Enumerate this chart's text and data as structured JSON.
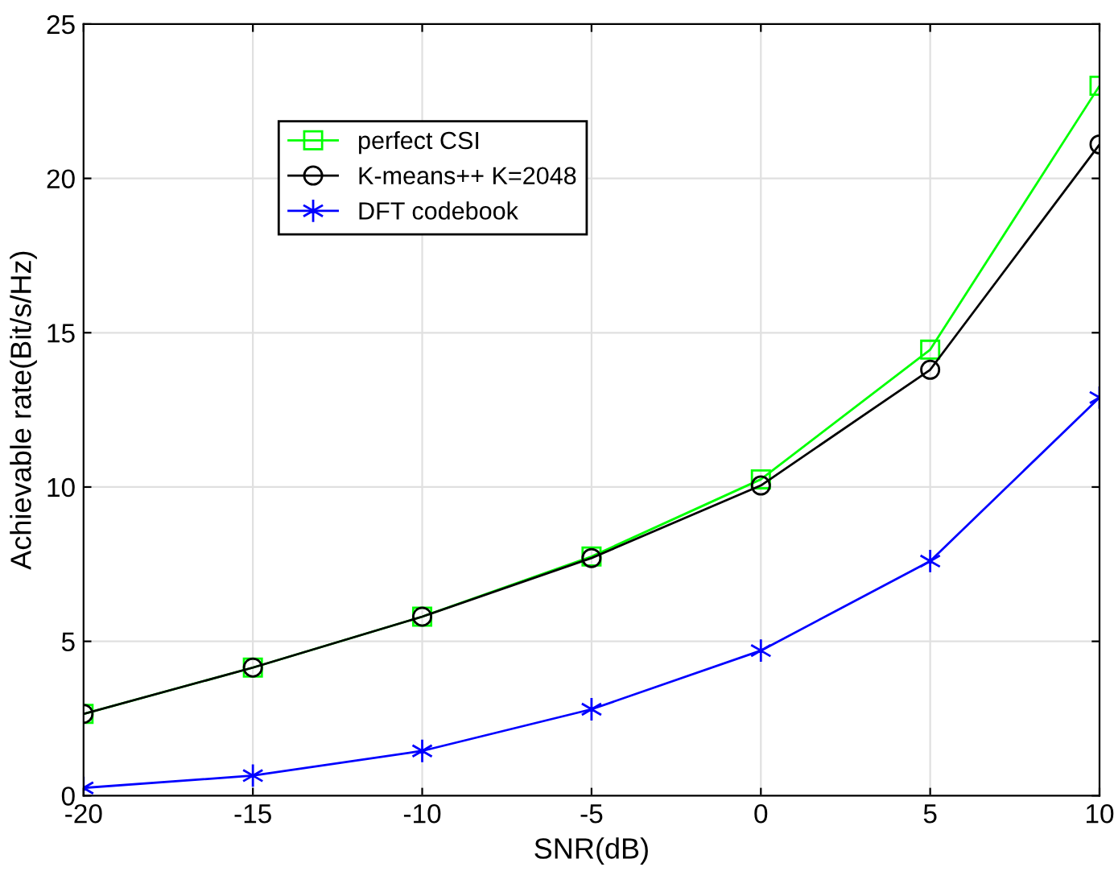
{
  "chart_data": {
    "type": "line",
    "xlabel": "SNR(dB)",
    "ylabel": "Achievable rate(Bit/s/Hz)",
    "x": [
      -20,
      -15,
      -10,
      -5,
      0,
      5,
      10
    ],
    "series": [
      {
        "name": "perfect CSI",
        "color": "#00ff00",
        "marker": "square",
        "values": [
          2.65,
          4.15,
          5.8,
          7.75,
          10.25,
          14.45,
          23.0
        ]
      },
      {
        "name": "K-means++ K=2048",
        "color": "#000000",
        "marker": "circle",
        "values": [
          2.65,
          4.15,
          5.8,
          7.7,
          10.05,
          13.8,
          21.1
        ]
      },
      {
        "name": "DFT codebook",
        "color": "#0000ff",
        "marker": "cross",
        "values": [
          0.25,
          0.65,
          1.45,
          2.8,
          4.7,
          7.6,
          12.9
        ]
      }
    ],
    "xlim": [
      -20,
      10
    ],
    "xticks": [
      -20,
      -15,
      -10,
      -5,
      0,
      5,
      10
    ],
    "ylim": [
      0,
      25
    ],
    "yticks": [
      0,
      5,
      10,
      15,
      20,
      25
    ],
    "grid": true,
    "legend": "top left",
    "line_style": "solid"
  }
}
